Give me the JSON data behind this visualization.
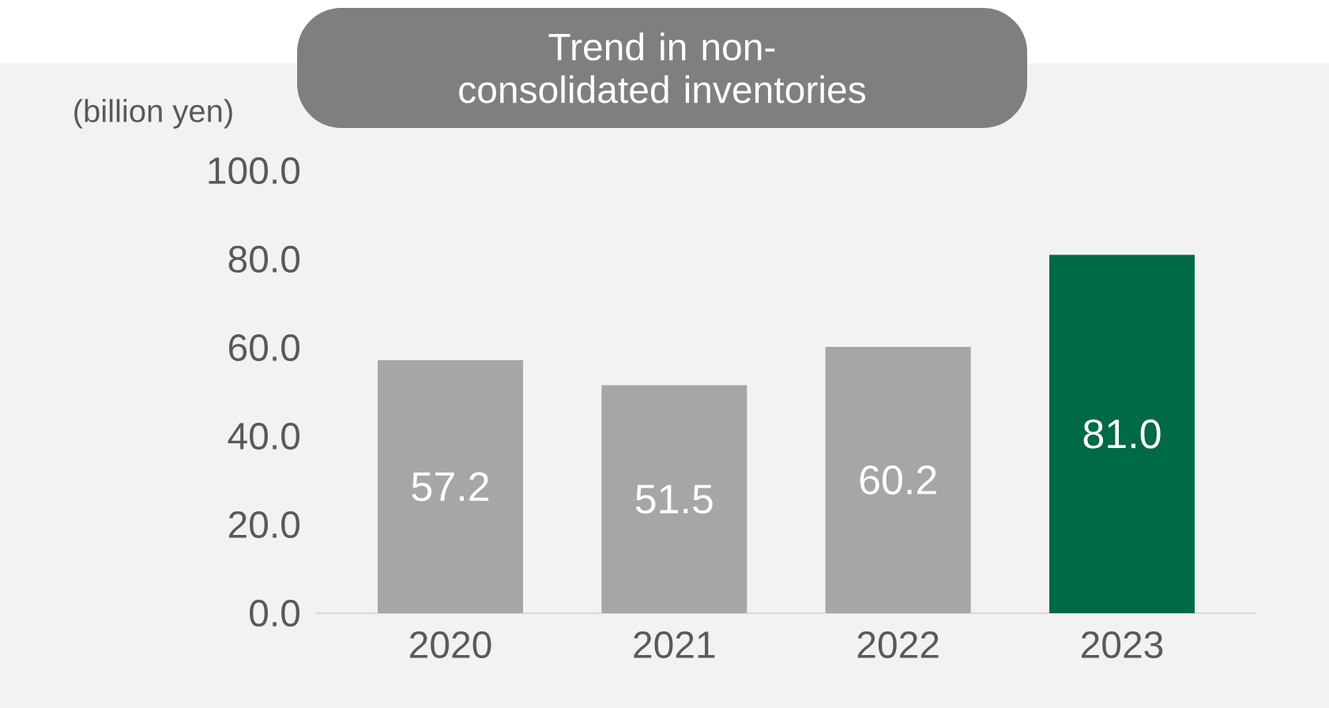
{
  "chart_data": {
    "type": "bar",
    "title": "Trend in non-consolidated inventories",
    "ylabel": "(billion yen)",
    "categories": [
      "2020",
      "2021",
      "2022",
      "2023"
    ],
    "values": [
      57.2,
      51.5,
      60.2,
      81.0
    ],
    "colors": [
      "#a6a6a6",
      "#a6a6a6",
      "#a6a6a6",
      "#006a44"
    ],
    "ylim": [
      0,
      100
    ],
    "yticks": [
      {
        "value": 0,
        "label": "0.0"
      },
      {
        "value": 20,
        "label": "20.0"
      },
      {
        "value": 40,
        "label": "40.0"
      },
      {
        "value": 60,
        "label": "60.0"
      },
      {
        "value": 80,
        "label": "80.0"
      },
      {
        "value": 100,
        "label": "100.0"
      }
    ],
    "value_labels": [
      "57.2",
      "51.5",
      "60.2",
      "81.0"
    ]
  }
}
